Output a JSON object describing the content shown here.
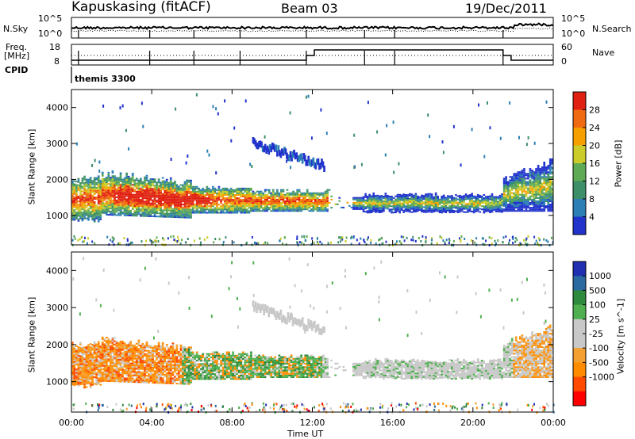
{
  "header": {
    "station": "Kapuskasing (fitACF)",
    "beam": "Beam 03",
    "date": "19/Dec/2011"
  },
  "side_labels": {
    "nsky": "N.Sky",
    "freq_line1": "Freq.",
    "freq_line2": "[MHz]",
    "cpid": "CPID",
    "nsearch": "N.Search",
    "nave": "Nave",
    "cpid_value": "themis 3300"
  },
  "colors": {
    "power_scale": [
      "#2233cc",
      "#2b7fb5",
      "#3d8f6a",
      "#5faa55",
      "#cbcc2a",
      "#f5a000",
      "#ef6a10",
      "#e02010"
    ],
    "velocity_scale": [
      "#ff0000",
      "#ff4a00",
      "#ff8c00",
      "#f3a030",
      "#c8c8c8",
      "#c8c8c8",
      "#50b050",
      "#2e8a3c",
      "#2a6aa0",
      "#2030b0"
    ]
  },
  "chart_data": [
    {
      "type": "line",
      "name": "noise-panel",
      "left_ticks": [
        "10^5",
        "10^0"
      ],
      "right_ticks": [
        "10^5",
        "10^0"
      ],
      "xlim": [
        "00:00",
        "24:00"
      ]
    },
    {
      "type": "line",
      "name": "frequency-panel",
      "left_ticks": [
        "18",
        "8"
      ],
      "right_ticks": [
        "60",
        "0"
      ],
      "xlim": [
        "00:00",
        "24:00"
      ]
    },
    {
      "type": "heatmap",
      "name": "power",
      "ylabel": "Slant Range [km]",
      "ylim": [
        180,
        4500
      ],
      "yticks": [
        1000,
        2000,
        3000,
        4000
      ],
      "xlim_hours": [
        0,
        24
      ],
      "colorbar_label": "Power [dB]",
      "colorbar_ticks": [
        "4",
        "8",
        "12",
        "16",
        "20",
        "24",
        "28"
      ]
    },
    {
      "type": "heatmap",
      "name": "velocity",
      "ylabel": "Slant Range [km]",
      "ylim": [
        180,
        4500
      ],
      "yticks": [
        1000,
        2000,
        3000,
        4000
      ],
      "xlim_hours": [
        0,
        24
      ],
      "xticks": [
        "00:00",
        "04:00",
        "08:00",
        "12:00",
        "16:00",
        "20:00",
        "00:00"
      ],
      "xlabel": "Time UT",
      "colorbar_label": "Velocity [m s^-1]",
      "colorbar_ticks": [
        "1000",
        "500",
        "100",
        "25",
        "-25",
        "-100",
        "-500",
        "-1000"
      ]
    }
  ]
}
